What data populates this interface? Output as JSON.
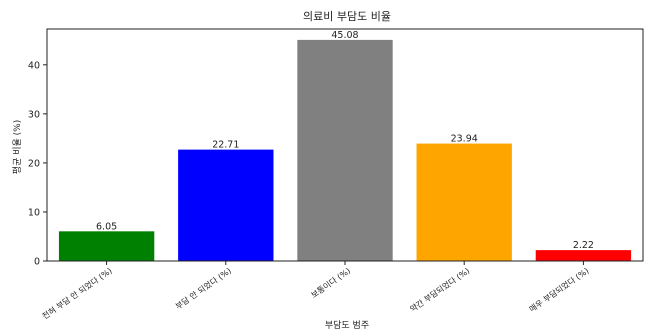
{
  "chart_data": {
    "type": "bar",
    "title": "의료비 부담도 비율",
    "xlabel": "부담도 범주",
    "ylabel": "평균 비율 (%)",
    "categories": [
      "전혀 부담 안 되었다 (%)",
      "부담 안 되었다 (%)",
      "보통이다 (%)",
      "약간 부담되었다 (%)",
      "매우 부담되었다 (%)"
    ],
    "values": [
      6.05,
      22.71,
      45.08,
      23.94,
      2.22
    ],
    "data_labels": [
      "6.05",
      "22.71",
      "45.08",
      "23.94",
      "2.22"
    ],
    "bar_colors": [
      "#008000",
      "#0000ff",
      "#808080",
      "#ffa500",
      "#ff0000"
    ],
    "ylim": [
      0,
      47.3
    ],
    "yticks": [
      0,
      10,
      20,
      30,
      40
    ],
    "grid": false,
    "legend": "none"
  }
}
